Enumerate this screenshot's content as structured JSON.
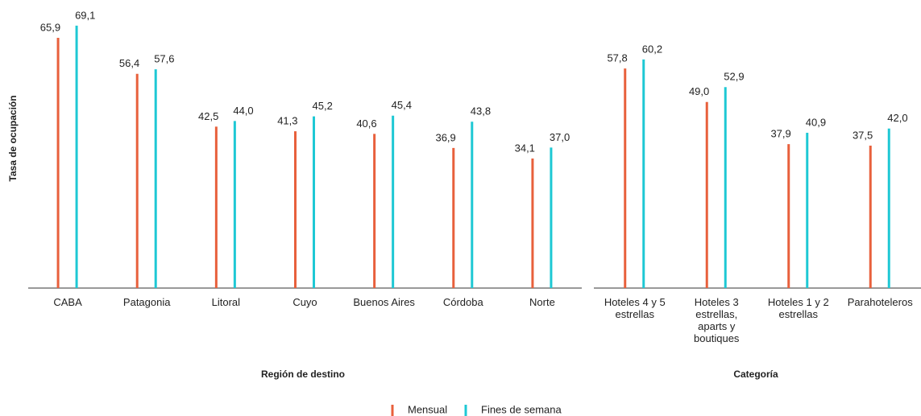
{
  "chart_data": [
    {
      "type": "bar",
      "x_label": "Región de destino",
      "y_label": "Tasa de ocupación",
      "categories": [
        "CABA",
        "Patagonia",
        "Litoral",
        "Cuyo",
        "Buenos Aires",
        "Córdoba",
        "Norte"
      ],
      "series": [
        {
          "name": "Mensual",
          "color": "#e8603c",
          "values": [
            65.9,
            56.4,
            42.5,
            41.3,
            40.6,
            36.9,
            34.1
          ],
          "value_labels": [
            "65,9",
            "56,4",
            "42,5",
            "41,3",
            "40,6",
            "36,9",
            "34,1"
          ]
        },
        {
          "name": "Fines de semana",
          "color": "#1ec8d4",
          "values": [
            69.1,
            57.6,
            44.0,
            45.2,
            45.4,
            43.8,
            37.0
          ],
          "value_labels": [
            "69,1",
            "57,6",
            "44,0",
            "45,2",
            "45,4",
            "43,8",
            "37,0"
          ]
        }
      ],
      "ylim": [
        0,
        70
      ]
    },
    {
      "type": "bar",
      "x_label": "Categoría",
      "categories": [
        "Hoteles 4 y 5 estrellas",
        "Hoteles 3 estrellas, aparts y boutiques",
        "Hoteles 1 y 2 estrellas",
        "Parahoteleros"
      ],
      "series": [
        {
          "color": "#e8603c",
          "values": [
            57.8,
            49.0,
            37.9,
            37.5
          ],
          "value_labels": [
            "57,8",
            "49,0",
            "37,9",
            "37,5"
          ]
        },
        {
          "color": "#1ec8d4",
          "values": [
            60.2,
            52.9,
            40.9,
            42.0
          ],
          "value_labels": [
            "60,2",
            "52,9",
            "40,9",
            "42,0"
          ]
        }
      ],
      "ylim": [
        0,
        70
      ]
    }
  ]
}
